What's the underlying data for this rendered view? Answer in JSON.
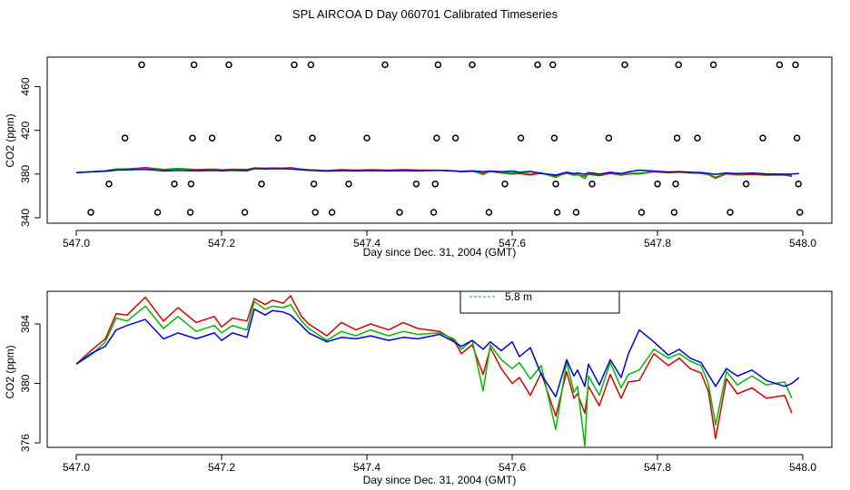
{
  "title": "SPL AIRCOA D  Day 060701  Calibrated Timeseries",
  "chart_data": [
    {
      "type": "scatter",
      "title": "",
      "xlabel": "Day since Dec. 31, 2004 (GMT)",
      "ylabel": "CO2 (ppm)",
      "xlim": [
        546.96,
        548.04
      ],
      "ylim": [
        335,
        487
      ],
      "xticks": [
        547.0,
        547.2,
        547.4,
        547.6,
        547.8,
        548.0
      ],
      "xtick_labels": [
        "547.0",
        "547.2",
        "547.4",
        "547.6",
        "547.8",
        "548.0"
      ],
      "yticks": [
        340,
        380,
        420,
        460
      ],
      "ytick_labels": [
        "340",
        "380",
        "420",
        "460"
      ],
      "colors": {
        "red": "#dd0000",
        "green": "#00bb00",
        "blue": "#0000dd"
      },
      "circles": [
        {
          "x": 547.02,
          "y": 345
        },
        {
          "x": 547.045,
          "y": 371
        },
        {
          "x": 547.067,
          "y": 413
        },
        {
          "x": 547.09,
          "y": 480
        },
        {
          "x": 547.112,
          "y": 345
        },
        {
          "x": 547.135,
          "y": 371
        },
        {
          "x": 547.157,
          "y": 345
        },
        {
          "x": 547.158,
          "y": 371
        },
        {
          "x": 547.16,
          "y": 413
        },
        {
          "x": 547.162,
          "y": 480
        },
        {
          "x": 547.187,
          "y": 413
        },
        {
          "x": 547.21,
          "y": 480
        },
        {
          "x": 547.232,
          "y": 345
        },
        {
          "x": 547.255,
          "y": 371
        },
        {
          "x": 547.278,
          "y": 413
        },
        {
          "x": 547.3,
          "y": 480
        },
        {
          "x": 547.323,
          "y": 480
        },
        {
          "x": 547.325,
          "y": 413
        },
        {
          "x": 547.327,
          "y": 371
        },
        {
          "x": 547.329,
          "y": 345
        },
        {
          "x": 547.352,
          "y": 345
        },
        {
          "x": 547.375,
          "y": 371
        },
        {
          "x": 547.4,
          "y": 413
        },
        {
          "x": 547.425,
          "y": 480
        },
        {
          "x": 547.445,
          "y": 345
        },
        {
          "x": 547.468,
          "y": 371
        },
        {
          "x": 547.492,
          "y": 345
        },
        {
          "x": 547.494,
          "y": 371
        },
        {
          "x": 547.496,
          "y": 413
        },
        {
          "x": 547.498,
          "y": 480
        },
        {
          "x": 547.522,
          "y": 413
        },
        {
          "x": 547.545,
          "y": 480
        },
        {
          "x": 547.568,
          "y": 345
        },
        {
          "x": 547.59,
          "y": 371
        },
        {
          "x": 547.612,
          "y": 413
        },
        {
          "x": 547.635,
          "y": 480
        },
        {
          "x": 547.656,
          "y": 480
        },
        {
          "x": 547.658,
          "y": 413
        },
        {
          "x": 547.66,
          "y": 371
        },
        {
          "x": 547.662,
          "y": 345
        },
        {
          "x": 547.688,
          "y": 345
        },
        {
          "x": 547.71,
          "y": 371
        },
        {
          "x": 547.733,
          "y": 413
        },
        {
          "x": 547.755,
          "y": 480
        },
        {
          "x": 547.778,
          "y": 345
        },
        {
          "x": 547.8,
          "y": 371
        },
        {
          "x": 547.823,
          "y": 345
        },
        {
          "x": 547.825,
          "y": 371
        },
        {
          "x": 547.827,
          "y": 413
        },
        {
          "x": 547.829,
          "y": 480
        },
        {
          "x": 547.855,
          "y": 413
        },
        {
          "x": 547.877,
          "y": 480
        },
        {
          "x": 547.9,
          "y": 345
        },
        {
          "x": 547.922,
          "y": 371
        },
        {
          "x": 547.945,
          "y": 413
        },
        {
          "x": 547.968,
          "y": 480
        },
        {
          "x": 547.99,
          "y": 480
        },
        {
          "x": 547.992,
          "y": 413
        },
        {
          "x": 547.994,
          "y": 371
        },
        {
          "x": 547.996,
          "y": 345
        }
      ],
      "lines": [
        {
          "name": "red",
          "color": "#dd0000"
        },
        {
          "name": "green",
          "color": "#00bb00"
        },
        {
          "name": "blue",
          "color": "#0000dd"
        }
      ]
    },
    {
      "type": "line",
      "title": "",
      "xlabel": "Day since Dec. 31, 2004 (GMT)",
      "ylabel": "CO2 (ppm)",
      "xlim": [
        546.96,
        548.04
      ],
      "ylim": [
        375.7,
        386.2
      ],
      "xticks": [
        547.0,
        547.2,
        547.4,
        547.6,
        547.8,
        548.0
      ],
      "xtick_labels": [
        "547.0",
        "547.2",
        "547.4",
        "547.6",
        "547.8",
        "548.0"
      ],
      "yticks": [
        376,
        380,
        384
      ],
      "ytick_labels": [
        "376",
        "380",
        "384"
      ],
      "legend": {
        "position": "top-center",
        "entries": [
          {
            "label": "5.8 m",
            "color": "#00bb00"
          }
        ]
      },
      "series": [
        {
          "name": "red",
          "color": "#dd0000",
          "x": [
            547.0,
            547.02,
            547.04,
            547.055,
            547.07,
            547.095,
            547.12,
            547.14,
            547.165,
            547.19,
            547.2,
            547.215,
            547.235,
            547.245,
            547.26,
            547.27,
            547.285,
            547.295,
            547.31,
            547.32,
            547.345,
            547.365,
            547.385,
            547.405,
            547.43,
            547.45,
            547.47,
            547.5,
            547.52,
            547.53,
            547.545,
            547.56,
            547.57,
            547.585,
            547.6,
            547.61,
            547.625,
            547.64,
            547.66,
            547.675,
            547.685,
            547.69,
            547.7,
            547.705,
            547.72,
            547.735,
            547.75,
            547.76,
            547.775,
            547.795,
            547.815,
            547.83,
            547.845,
            547.86,
            547.87,
            547.88,
            547.895,
            547.91,
            547.93,
            547.95,
            547.975,
            547.985
          ],
          "y": [
            381.3,
            382.2,
            383.0,
            384.7,
            384.6,
            385.8,
            384.2,
            385.1,
            384.1,
            384.5,
            383.8,
            384.4,
            384.2,
            385.7,
            385.3,
            385.6,
            385.4,
            385.9,
            384.5,
            384.0,
            383.2,
            384.1,
            383.6,
            384.0,
            383.6,
            384.1,
            383.7,
            383.5,
            382.9,
            382.0,
            382.6,
            380.6,
            382.4,
            381.0,
            380.0,
            380.4,
            379.2,
            380.7,
            377.8,
            380.8,
            379.0,
            379.3,
            378.0,
            379.8,
            378.5,
            380.6,
            379.0,
            380.1,
            380.2,
            382.0,
            381.2,
            381.7,
            381.0,
            380.7,
            379.5,
            376.3,
            380.3,
            379.3,
            379.7,
            379.0,
            379.2,
            378.0
          ]
        },
        {
          "name": "green",
          "color": "#00bb00",
          "x": [
            547.0,
            547.02,
            547.04,
            547.055,
            547.07,
            547.095,
            547.12,
            547.14,
            547.165,
            547.19,
            547.2,
            547.215,
            547.235,
            547.245,
            547.26,
            547.27,
            547.285,
            547.295,
            547.31,
            547.32,
            547.345,
            547.365,
            547.385,
            547.405,
            547.43,
            547.45,
            547.47,
            547.5,
            547.52,
            547.53,
            547.545,
            547.56,
            547.57,
            547.585,
            547.6,
            547.61,
            547.625,
            547.64,
            547.66,
            547.675,
            547.685,
            547.69,
            547.7,
            547.705,
            547.72,
            547.735,
            547.75,
            547.76,
            547.775,
            547.795,
            547.815,
            547.83,
            547.845,
            547.86,
            547.87,
            547.88,
            547.895,
            547.91,
            547.93,
            547.95,
            547.975,
            547.985
          ],
          "y": [
            381.3,
            381.9,
            382.8,
            384.4,
            384.2,
            385.2,
            383.7,
            384.5,
            383.5,
            383.9,
            383.4,
            383.9,
            383.6,
            385.5,
            385.0,
            385.2,
            385.1,
            385.3,
            384.2,
            383.7,
            382.9,
            383.5,
            383.2,
            383.6,
            383.2,
            383.5,
            383.3,
            383.4,
            383.0,
            382.3,
            382.9,
            379.5,
            382.6,
            381.6,
            381.0,
            381.4,
            380.3,
            381.2,
            376.9,
            381.5,
            379.4,
            379.8,
            375.8,
            380.5,
            379.2,
            381.4,
            379.7,
            380.6,
            380.9,
            382.3,
            381.7,
            382.0,
            381.5,
            381.2,
            380.0,
            377.2,
            380.8,
            379.9,
            380.5,
            379.9,
            380.1,
            379.0
          ]
        },
        {
          "name": "blue",
          "color": "#0000dd",
          "x": [
            547.0,
            547.02,
            547.04,
            547.055,
            547.07,
            547.095,
            547.12,
            547.14,
            547.165,
            547.19,
            547.2,
            547.215,
            547.235,
            547.245,
            547.26,
            547.27,
            547.285,
            547.295,
            547.31,
            547.32,
            547.345,
            547.365,
            547.385,
            547.405,
            547.43,
            547.45,
            547.47,
            547.5,
            547.52,
            547.53,
            547.545,
            547.56,
            547.57,
            547.585,
            547.6,
            547.61,
            547.625,
            547.64,
            547.66,
            547.675,
            547.685,
            547.69,
            547.7,
            547.705,
            547.72,
            547.735,
            547.75,
            547.76,
            547.775,
            547.795,
            547.815,
            547.83,
            547.845,
            547.86,
            547.87,
            547.88,
            547.895,
            547.91,
            547.93,
            547.95,
            547.975,
            547.985,
            547.995
          ],
          "y": [
            381.3,
            382.0,
            382.5,
            383.6,
            383.9,
            384.3,
            383.0,
            383.4,
            383.0,
            383.4,
            382.9,
            383.4,
            383.1,
            385.0,
            384.6,
            384.9,
            384.8,
            384.6,
            383.9,
            383.4,
            382.8,
            383.1,
            383.0,
            383.2,
            382.9,
            383.1,
            383.0,
            383.3,
            382.8,
            382.5,
            382.9,
            382.3,
            382.8,
            382.2,
            382.8,
            381.8,
            382.4,
            380.6,
            379.1,
            381.6,
            380.5,
            380.9,
            379.8,
            381.3,
            379.9,
            381.6,
            380.4,
            382.0,
            383.6,
            382.8,
            381.9,
            382.3,
            381.7,
            381.4,
            380.6,
            379.8,
            381.0,
            380.5,
            380.9,
            380.2,
            379.8,
            380.0,
            380.4
          ]
        }
      ]
    }
  ]
}
